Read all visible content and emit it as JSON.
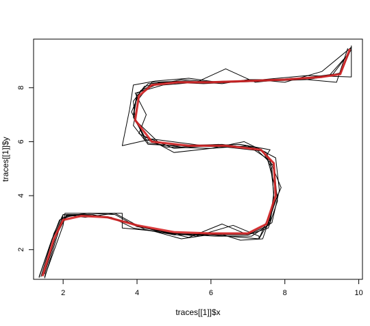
{
  "chart_data": {
    "type": "line",
    "title": "",
    "xlabel": "traces[[1]]$x",
    "ylabel": "traces[[1]]$y",
    "xlim": [
      1.2,
      10.1
    ],
    "ylim": [
      0.9,
      9.8
    ],
    "x_ticks": [
      2,
      4,
      6,
      8,
      10
    ],
    "y_ticks": [
      2,
      4,
      6,
      8
    ],
    "grid": false,
    "legend": "none",
    "colors": {
      "traces": "#000000",
      "mean": "#d62728"
    },
    "series": [
      {
        "color": "#000000",
        "x": [
          1.35,
          1.7,
          2.0,
          2.5,
          3.3,
          3.9,
          4.8,
          6.0,
          7.0,
          7.55,
          7.75,
          7.7,
          7.3,
          6.2,
          5.2,
          4.3,
          3.9,
          4.0,
          4.3,
          5.0,
          6.0,
          7.0,
          8.0,
          9.0,
          9.5,
          9.8
        ],
        "y": [
          1.0,
          2.4,
          3.2,
          3.3,
          3.2,
          2.8,
          2.6,
          2.55,
          2.55,
          2.9,
          4.0,
          5.2,
          5.75,
          5.9,
          5.8,
          5.95,
          6.9,
          7.7,
          8.15,
          8.2,
          8.2,
          8.25,
          8.3,
          8.4,
          8.55,
          9.5
        ]
      },
      {
        "color": "#000000",
        "x": [
          1.45,
          1.8,
          2.1,
          2.7,
          3.4,
          4.0,
          5.0,
          6.1,
          7.1,
          7.65,
          7.85,
          7.75,
          7.2,
          6.0,
          5.0,
          4.2,
          3.85,
          4.1,
          4.6,
          5.5,
          6.5,
          7.5,
          8.5,
          9.3,
          9.8
        ],
        "y": [
          1.05,
          2.5,
          3.25,
          3.35,
          3.3,
          2.85,
          2.6,
          2.5,
          2.5,
          3.0,
          4.2,
          5.4,
          5.8,
          5.85,
          5.75,
          6.2,
          7.1,
          7.9,
          8.2,
          8.2,
          8.25,
          8.25,
          8.35,
          8.5,
          9.4
        ]
      },
      {
        "color": "#000000",
        "x": [
          1.5,
          1.9,
          2.0,
          3.0,
          3.5,
          4.0,
          5.0,
          6.0,
          7.0,
          7.6,
          7.7,
          7.65,
          7.4,
          6.4,
          5.4,
          4.6,
          3.95,
          3.9,
          4.2,
          4.8,
          5.8,
          6.6,
          7.6,
          8.6,
          9.5,
          9.75
        ],
        "y": [
          0.95,
          2.8,
          3.3,
          3.25,
          3.1,
          2.9,
          2.55,
          2.6,
          2.6,
          3.0,
          3.9,
          5.0,
          5.65,
          5.8,
          5.85,
          5.95,
          6.8,
          7.5,
          8.05,
          8.2,
          8.15,
          8.2,
          8.25,
          8.3,
          8.5,
          9.3
        ]
      },
      {
        "color": "#000000",
        "x": [
          1.5,
          2.0,
          2.05,
          3.6,
          3.6,
          4.4,
          5.2,
          6.2,
          6.8,
          7.4,
          7.8,
          7.5,
          7.6,
          6.8,
          5.8,
          4.4,
          3.6,
          3.8,
          3.9,
          4.5,
          5.4,
          6.2,
          7.4,
          8.6,
          9.8,
          9.8
        ],
        "y": [
          1.0,
          2.9,
          3.35,
          3.35,
          2.8,
          2.7,
          2.4,
          2.6,
          2.35,
          2.4,
          4.0,
          5.5,
          5.7,
          5.9,
          5.85,
          6.1,
          5.85,
          7.2,
          8.1,
          8.25,
          8.35,
          8.2,
          8.3,
          8.45,
          8.4,
          9.55
        ]
      },
      {
        "color": "#000000",
        "x": [
          1.35,
          1.65,
          1.9,
          2.3,
          3.0,
          3.8,
          4.5,
          5.6,
          6.6,
          7.3,
          7.3,
          7.9,
          7.5,
          6.9,
          6.0,
          5.0,
          4.05,
          4.25,
          3.95,
          4.7,
          5.6,
          6.4,
          7.2,
          8.2,
          9.4,
          9.7
        ],
        "y": [
          0.97,
          2.2,
          3.1,
          3.3,
          3.25,
          3.0,
          2.7,
          2.5,
          2.9,
          2.5,
          2.4,
          4.3,
          5.6,
          6.0,
          5.75,
          5.6,
          6.3,
          7.0,
          7.8,
          8.1,
          8.2,
          8.7,
          8.2,
          8.35,
          8.2,
          9.45
        ]
      },
      {
        "color": "#000000",
        "x": [
          1.4,
          1.75,
          2.0,
          2.6,
          3.4,
          4.2,
          5.0,
          6.0,
          7.3,
          7.6,
          7.7,
          7.6,
          7.0,
          6.0,
          4.8,
          4.2,
          3.9,
          4.0,
          4.5,
          5.2,
          6.2,
          7.2,
          8.0,
          9.0,
          9.8
        ],
        "y": [
          1.0,
          2.6,
          3.3,
          3.2,
          3.35,
          2.75,
          2.55,
          2.55,
          2.4,
          3.1,
          4.1,
          5.3,
          5.85,
          5.75,
          5.8,
          6.1,
          7.0,
          7.8,
          8.1,
          8.3,
          8.2,
          8.3,
          8.2,
          8.6,
          9.5
        ]
      },
      {
        "color": "#000000",
        "x": [
          1.5,
          1.85,
          2.1,
          2.8,
          3.6,
          4.3,
          5.4,
          6.3,
          7.0,
          7.55,
          7.8,
          7.7,
          7.2,
          6.3,
          5.1,
          4.3,
          3.9,
          4.05,
          4.4,
          5.3,
          6.3,
          7.0,
          8.0,
          9.2,
          9.75
        ],
        "y": [
          1.1,
          2.7,
          3.3,
          3.3,
          3.05,
          2.8,
          2.45,
          2.95,
          2.55,
          2.8,
          3.8,
          5.1,
          5.75,
          5.9,
          5.85,
          5.9,
          6.6,
          7.6,
          8.2,
          8.25,
          8.15,
          8.3,
          8.3,
          8.45,
          9.3
        ]
      },
      {
        "color": "#d62728",
        "x": [
          1.45,
          1.75,
          2.0,
          2.5,
          3.2,
          4.0,
          5.0,
          6.0,
          7.0,
          7.5,
          7.75,
          7.7,
          7.35,
          6.4,
          5.4,
          4.4,
          3.95,
          4.05,
          4.4,
          5.1,
          6.0,
          7.0,
          8.0,
          9.0,
          9.5,
          9.75
        ],
        "y": [
          1.05,
          2.4,
          3.1,
          3.25,
          3.2,
          2.9,
          2.65,
          2.6,
          2.6,
          2.95,
          4.0,
          5.2,
          5.7,
          5.85,
          5.85,
          6.0,
          6.8,
          7.7,
          8.1,
          8.2,
          8.2,
          8.25,
          8.3,
          8.4,
          8.5,
          9.4
        ]
      }
    ]
  }
}
